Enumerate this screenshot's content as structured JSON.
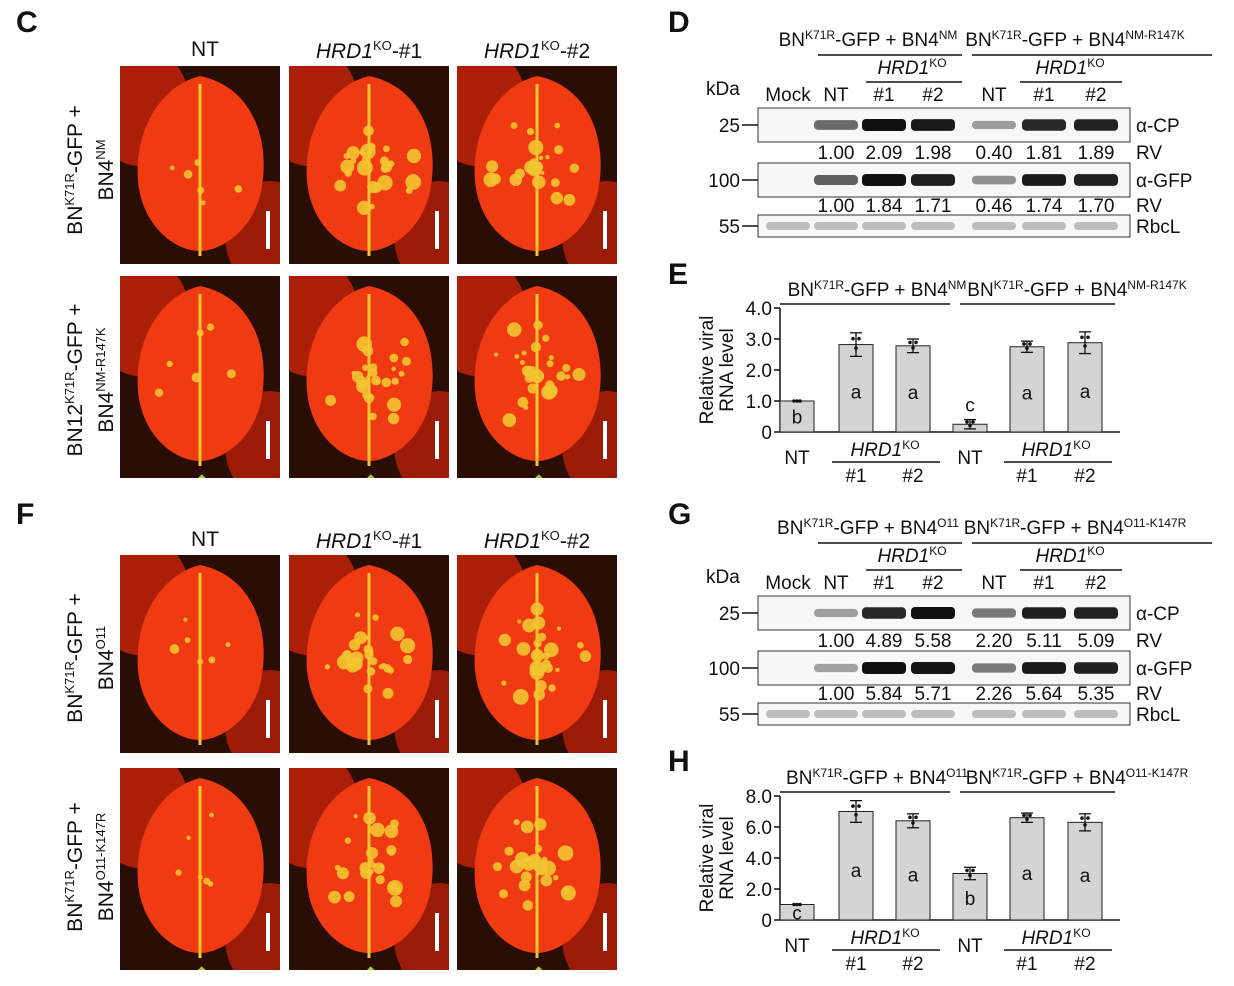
{
  "panels": {
    "C": "C",
    "D": "D",
    "E": "E",
    "F": "F",
    "G": "G",
    "H": "H"
  },
  "photo_columns": {
    "nt": "NT",
    "ko1_gene": "HRD1",
    "ko1_sup": "KO",
    "ko1_suffix": "-#1",
    "ko2_gene": "HRD1",
    "ko2_sup": "KO",
    "ko2_suffix": "-#2"
  },
  "row_labels": {
    "c_row1": {
      "pre": "BN",
      "sup": "K71R",
      "post": "-GFP +",
      "line2": "BN4",
      "line2_sup": "NM"
    },
    "c_row2": {
      "pre": "BN12",
      "sup": "K71R",
      "post": "-GFP +",
      "line2": "BN4",
      "line2_sup": "NM-R147K"
    },
    "f_row1": {
      "pre": "BN",
      "sup": "K71R",
      "post": "-GFP +",
      "line2": "BN4",
      "line2_sup": "O11"
    },
    "f_row2": {
      "pre": "BN",
      "sup": "K71R",
      "post": "-GFP +",
      "line2": "BN4",
      "line2_sup": "O11-K147R"
    }
  },
  "blot_D": {
    "group1": {
      "pre": "BN",
      "sup": "K71R",
      "mid": "-GFP + BN4",
      "sup2": "NM"
    },
    "group2": {
      "pre": "BN",
      "sup": "K71R",
      "mid": "-GFP + BN4",
      "sup2": "NM-R147K"
    },
    "ko_gene": "HRD1",
    "ko_sup": "KO",
    "kda": "kDa",
    "lanes": [
      "Mock",
      "NT",
      "#1",
      "#2",
      "NT",
      "#1",
      "#2"
    ],
    "mw": [
      "25",
      "100",
      "55"
    ],
    "antibodies": [
      "α-CP",
      "α-GFP",
      "RbcL"
    ],
    "rv_label": "RV",
    "rv_cp": [
      "1.00",
      "2.09",
      "1.98",
      "0.40",
      "1.81",
      "1.89"
    ],
    "rv_gfp": [
      "1.00",
      "1.84",
      "1.71",
      "0.46",
      "1.74",
      "1.70"
    ]
  },
  "blot_G": {
    "group1": {
      "pre": "BN",
      "sup": "K71R",
      "mid": "-GFP + BN4",
      "sup2": "O11"
    },
    "group2": {
      "pre": "BN",
      "sup": "K71R",
      "mid": "-GFP + BN4",
      "sup2": "O11-K147R"
    },
    "ko_gene": "HRD1",
    "ko_sup": "KO",
    "kda": "kDa",
    "lanes": [
      "Mock",
      "NT",
      "#1",
      "#2",
      "NT",
      "#1",
      "#2"
    ],
    "mw": [
      "25",
      "100",
      "55"
    ],
    "antibodies": [
      "α-CP",
      "α-GFP",
      "RbcL"
    ],
    "rv_label": "RV",
    "rv_cp": [
      "1.00",
      "4.89",
      "5.58",
      "2.20",
      "5.11",
      "5.09"
    ],
    "rv_gfp": [
      "1.00",
      "5.84",
      "5.71",
      "2.26",
      "5.64",
      "5.35"
    ]
  },
  "chart_data": [
    {
      "panel": "E",
      "type": "bar",
      "ylabel": "Relative viral RNA level",
      "ylim": [
        0,
        4.0
      ],
      "yticks": [
        "0",
        "1.0",
        "2.0",
        "3.0",
        "4.0"
      ],
      "categories": [
        "NT",
        "#1",
        "#2",
        "NT",
        "#1",
        "#2"
      ],
      "ko_gene": "HRD1",
      "ko_sup": "KO",
      "groups": [
        {
          "pre": "BN",
          "sup": "K71R",
          "mid": "-GFP + BN4",
          "sup2": "NM"
        },
        {
          "pre": "BN",
          "sup": "K71R",
          "mid": "-GFP + BN4",
          "sup2": "NM-R147K"
        }
      ],
      "values": [
        1.0,
        2.82,
        2.78,
        0.25,
        2.75,
        2.88
      ],
      "errors": [
        0.0,
        0.38,
        0.22,
        0.15,
        0.18,
        0.35
      ],
      "letters": [
        "b",
        "a",
        "a",
        "c",
        "a",
        "a"
      ],
      "bar_color": "#d4d4d4"
    },
    {
      "panel": "H",
      "type": "bar",
      "ylabel": "Relative viral RNA level",
      "ylim": [
        0,
        8.0
      ],
      "yticks": [
        "0",
        "2.0",
        "4.0",
        "6.0",
        "8.0"
      ],
      "categories": [
        "NT",
        "#1",
        "#2",
        "NT",
        "#1",
        "#2"
      ],
      "ko_gene": "HRD1",
      "ko_sup": "KO",
      "groups": [
        {
          "pre": "BN",
          "sup": "K71R",
          "mid": "-GFP + BN4",
          "sup2": "O11"
        },
        {
          "pre": "BN",
          "sup": "K71R",
          "mid": "-GFP + BN4",
          "sup2": "O11-K147R"
        }
      ],
      "values": [
        1.0,
        7.0,
        6.4,
        3.0,
        6.6,
        6.3
      ],
      "errors": [
        0.0,
        0.7,
        0.45,
        0.4,
        0.3,
        0.55
      ],
      "letters": [
        "c",
        "a",
        "a",
        "b",
        "a",
        "a"
      ],
      "bar_color": "#d4d4d4"
    }
  ],
  "colors": {
    "leaf_red": "#ef3a12",
    "leaf_yellow": "#f2c531",
    "dark_bg": "#1a0a05",
    "bar": "#d4d4d4"
  }
}
